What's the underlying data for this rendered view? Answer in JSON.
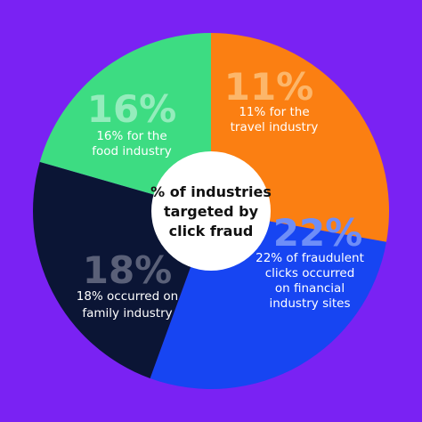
{
  "background_color": "#7a22f3",
  "center_circle_color": "#ffffff",
  "chart_data": {
    "type": "pie",
    "style": "donut",
    "center_title_lines": [
      "% of industries",
      "targeted by",
      "click fraud"
    ],
    "slices": [
      {
        "value": 11,
        "pct_label": "11%",
        "caption_lines": [
          "11% for the",
          "travel industry"
        ],
        "color": "#fb7f12",
        "pct_label_color": "#fcb66a"
      },
      {
        "value": 22,
        "pct_label": "22%",
        "caption_lines": [
          "22% of fraudulent",
          "clicks occurred",
          "on financial",
          "industry sites"
        ],
        "color": "#1745f2",
        "pct_label_color": "#6e8ef8"
      },
      {
        "value": 18,
        "pct_label": "18%",
        "caption_lines": [
          "18% occurred on",
          "family industry"
        ],
        "color": "#0b1535",
        "pct_label_color": "#5a6078"
      },
      {
        "value": 16,
        "pct_label": "16%",
        "caption_lines": [
          "16% for the",
          "food industry"
        ],
        "color": "#3ddc82",
        "pct_label_color": "#94ecbc"
      }
    ]
  }
}
